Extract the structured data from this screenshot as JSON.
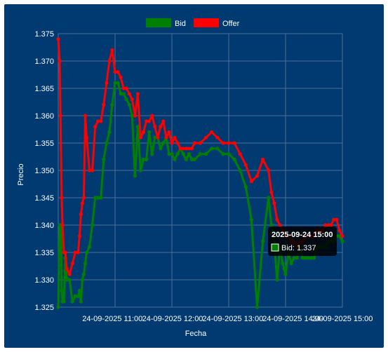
{
  "chart_data": {
    "type": "line",
    "xlabel": "Fecha",
    "ylabel": "Precio",
    "ylim": [
      1.325,
      1.375
    ],
    "y_ticks": [
      "1.325",
      "1.330",
      "1.335",
      "1.340",
      "1.345",
      "1.350",
      "1.355",
      "1.360",
      "1.365",
      "1.370",
      "1.375"
    ],
    "x_ticks": [
      {
        "label": "24-09-2025 11:00",
        "t": 0.1907
      },
      {
        "label": "24-09-2025 12:00",
        "t": 0.4025
      },
      {
        "label": "24-09-2025 13:00",
        "t": 0.6143
      },
      {
        "label": "24-09-2025 14:00",
        "t": 0.8261
      },
      {
        "label": "24-09-2025 15:00",
        "t": 1.0
      }
    ],
    "legend_position": "top",
    "grid": true,
    "colors": {
      "background": "#003a70",
      "grid": "#4f6f99",
      "bid": "#008000",
      "offer": "#ff0000"
    },
    "series": [
      {
        "name": "Bid",
        "color": "#008000",
        "x": [
          0.0,
          0.005,
          0.008,
          0.01,
          0.012,
          0.015,
          0.02,
          0.025,
          0.03,
          0.04,
          0.05,
          0.06,
          0.07,
          0.075,
          0.08,
          0.085,
          0.09,
          0.095,
          0.1,
          0.11,
          0.12,
          0.13,
          0.14,
          0.15,
          0.16,
          0.17,
          0.18,
          0.19,
          0.2,
          0.21,
          0.22,
          0.23,
          0.24,
          0.25,
          0.26,
          0.27,
          0.28,
          0.29,
          0.3,
          0.31,
          0.32,
          0.33,
          0.34,
          0.35,
          0.36,
          0.37,
          0.38,
          0.39,
          0.4,
          0.41,
          0.42,
          0.43,
          0.44,
          0.45,
          0.46,
          0.47,
          0.48,
          0.5,
          0.52,
          0.54,
          0.56,
          0.58,
          0.6,
          0.62,
          0.64,
          0.66,
          0.68,
          0.7,
          0.72,
          0.74,
          0.75,
          0.76,
          0.77,
          0.78,
          0.79,
          0.795,
          0.8,
          0.81,
          0.82,
          0.83,
          0.84,
          0.85,
          0.86,
          0.87,
          0.88,
          0.89,
          0.9,
          0.91,
          0.92,
          0.93,
          0.94,
          0.95,
          0.96,
          0.97,
          0.98,
          0.99,
          1.0
        ],
        "values": [
          1.325,
          1.34,
          1.336,
          1.34,
          1.328,
          1.326,
          1.326,
          1.334,
          1.33,
          1.33,
          1.326,
          1.327,
          1.327,
          1.328,
          1.326,
          1.33,
          1.331,
          1.333,
          1.335,
          1.336,
          1.34,
          1.345,
          1.345,
          1.345,
          1.352,
          1.355,
          1.357,
          1.362,
          1.366,
          1.366,
          1.364,
          1.364,
          1.363,
          1.362,
          1.36,
          1.349,
          1.358,
          1.35,
          1.352,
          1.352,
          1.357,
          1.353,
          1.356,
          1.356,
          1.354,
          1.355,
          1.356,
          1.353,
          1.353,
          1.352,
          1.353,
          1.354,
          1.353,
          1.352,
          1.353,
          1.352,
          1.352,
          1.353,
          1.353,
          1.354,
          1.354,
          1.353,
          1.353,
          1.352,
          1.35,
          1.347,
          1.341,
          1.325,
          1.337,
          1.345,
          1.34,
          1.337,
          1.33,
          1.336,
          1.333,
          1.332,
          1.331,
          1.335,
          1.333,
          1.334,
          1.334,
          1.336,
          1.334,
          1.334,
          1.334,
          1.334,
          1.334,
          1.336,
          1.336,
          1.336,
          1.336,
          1.337,
          1.337,
          1.337,
          1.338,
          1.338,
          1.337
        ]
      },
      {
        "name": "Offer",
        "color": "#ff0000",
        "x": [
          0.0,
          0.005,
          0.008,
          0.012,
          0.015,
          0.02,
          0.025,
          0.03,
          0.04,
          0.05,
          0.06,
          0.07,
          0.075,
          0.08,
          0.085,
          0.09,
          0.095,
          0.1,
          0.11,
          0.12,
          0.13,
          0.14,
          0.15,
          0.16,
          0.17,
          0.18,
          0.19,
          0.2,
          0.21,
          0.22,
          0.23,
          0.24,
          0.25,
          0.26,
          0.27,
          0.28,
          0.29,
          0.3,
          0.31,
          0.32,
          0.33,
          0.34,
          0.35,
          0.36,
          0.37,
          0.38,
          0.39,
          0.4,
          0.41,
          0.42,
          0.43,
          0.44,
          0.45,
          0.46,
          0.47,
          0.48,
          0.5,
          0.52,
          0.54,
          0.56,
          0.58,
          0.6,
          0.62,
          0.64,
          0.66,
          0.68,
          0.7,
          0.72,
          0.74,
          0.75,
          0.76,
          0.77,
          0.78,
          0.79,
          0.8,
          0.81,
          0.82,
          0.83,
          0.84,
          0.85,
          0.86,
          0.87,
          0.88,
          0.89,
          0.9,
          0.91,
          0.92,
          0.93,
          0.94,
          0.95,
          0.96,
          0.97,
          0.98,
          0.99,
          1.0
        ],
        "values": [
          1.374,
          1.37,
          1.36,
          1.345,
          1.34,
          1.335,
          1.335,
          1.332,
          1.331,
          1.333,
          1.335,
          1.335,
          1.338,
          1.342,
          1.344,
          1.345,
          1.36,
          1.356,
          1.35,
          1.35,
          1.358,
          1.359,
          1.359,
          1.362,
          1.366,
          1.37,
          1.372,
          1.368,
          1.368,
          1.367,
          1.365,
          1.365,
          1.364,
          1.363,
          1.36,
          1.364,
          1.356,
          1.357,
          1.359,
          1.359,
          1.36,
          1.358,
          1.356,
          1.358,
          1.359,
          1.356,
          1.357,
          1.355,
          1.356,
          1.355,
          1.354,
          1.354,
          1.354,
          1.354,
          1.354,
          1.355,
          1.355,
          1.356,
          1.357,
          1.356,
          1.355,
          1.355,
          1.355,
          1.353,
          1.351,
          1.348,
          1.349,
          1.352,
          1.35,
          1.346,
          1.344,
          1.341,
          1.34,
          1.339,
          1.338,
          1.338,
          1.337,
          1.337,
          1.336,
          1.337,
          1.337,
          1.338,
          1.338,
          1.338,
          1.338,
          1.339,
          1.339,
          1.339,
          1.34,
          1.34,
          1.34,
          1.341,
          1.341,
          1.339,
          1.338
        ]
      }
    ],
    "tooltip": {
      "title": "2025-09-24 15:00",
      "label": "Bid: 1.337",
      "swatch_series": "Bid"
    }
  }
}
